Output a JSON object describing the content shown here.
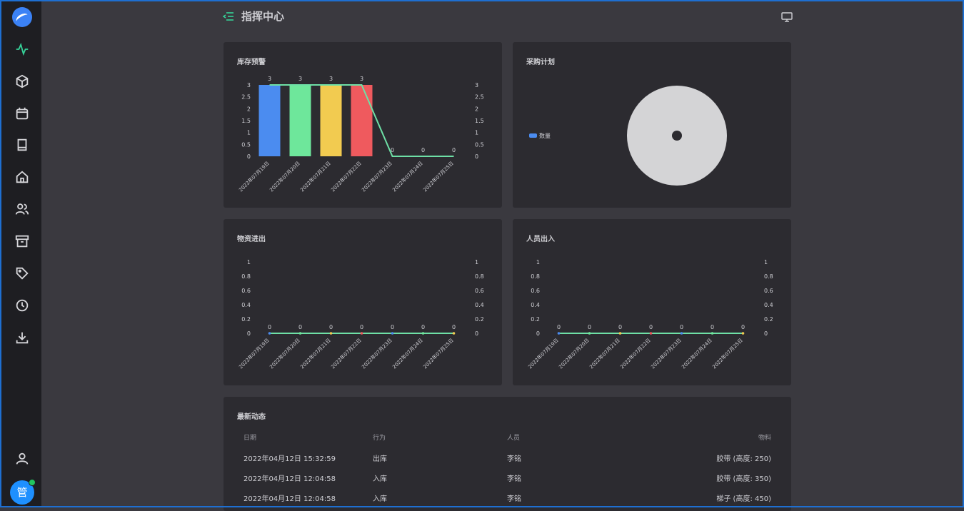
{
  "header": {
    "title": "指挥中心"
  },
  "nav": [
    "activity-icon",
    "cube-icon",
    "calendar-icon",
    "book-icon",
    "home-icon",
    "users-icon",
    "archive-icon",
    "tag-icon",
    "clock-icon",
    "download-icon"
  ],
  "user": {
    "avatar_text": "管"
  },
  "cards": {
    "stock_warning": {
      "title": "库存预警"
    },
    "purchase_plan": {
      "title": "采购计划",
      "legend": "数量"
    },
    "material_flow": {
      "title": "物资进出"
    },
    "personnel_flow": {
      "title": "人员出入"
    },
    "recent": {
      "title": "最新动态"
    }
  },
  "chart_data": [
    {
      "type": "bar",
      "categories": [
        "2022年07月19日",
        "2022年07月20日",
        "2022年07月21日",
        "2022年07月22日",
        "2022年07月23日",
        "2022年07月24日",
        "2022年07月25日"
      ],
      "values": [
        3,
        3,
        3,
        3,
        0,
        0,
        0
      ],
      "ylim": [
        0,
        3
      ],
      "yticks": [
        "0",
        "0.5",
        "1",
        "1.5",
        "2",
        "2.5",
        "3"
      ],
      "colors": [
        "#4b8cf0",
        "#6ee79b",
        "#f2cb50",
        "#ef5a5e",
        "#4b8cf0",
        "#6ee79b",
        "#f2cb50"
      ],
      "line_color": "#6ee0a6",
      "xlabel": "",
      "ylabel": ""
    },
    {
      "type": "pie",
      "series": [
        {
          "name": "数量",
          "values": []
        }
      ],
      "empty_color": "#d4d4d6"
    },
    {
      "type": "line",
      "categories": [
        "2022年07月19日",
        "2022年07月20日",
        "2022年07月21日",
        "2022年07月22日",
        "2022年07月23日",
        "2022年07月24日",
        "2022年07月25日"
      ],
      "values": [
        0,
        0,
        0,
        0,
        0,
        0,
        0
      ],
      "ylim": [
        0,
        1
      ],
      "yticks": [
        "0",
        "0.2",
        "0.4",
        "0.6",
        "0.8",
        "1"
      ],
      "line_color": "#6ee0a6",
      "xlabel": "",
      "ylabel": ""
    },
    {
      "type": "line",
      "categories": [
        "2022年07月19日",
        "2022年07月20日",
        "2022年07月21日",
        "2022年07月22日",
        "2022年07月23日",
        "2022年07月24日",
        "2022年07月25日"
      ],
      "values": [
        0,
        0,
        0,
        0,
        0,
        0,
        0
      ],
      "ylim": [
        0,
        1
      ],
      "yticks": [
        "0",
        "0.2",
        "0.4",
        "0.6",
        "0.8",
        "1"
      ],
      "line_color": "#6ee0a6",
      "xlabel": "",
      "ylabel": ""
    }
  ],
  "table": {
    "headers": [
      "日期",
      "行为",
      "人员",
      "物料"
    ],
    "rows": [
      [
        "2022年04月12日 15:32:59",
        "出库",
        "李铭",
        "胶带 (高度: 250)"
      ],
      [
        "2022年04月12日 12:04:58",
        "入库",
        "李铭",
        "胶带 (高度: 350)"
      ],
      [
        "2022年04月12日 12:04:58",
        "入库",
        "李铭",
        "梯子 (高度: 450)"
      ]
    ]
  }
}
